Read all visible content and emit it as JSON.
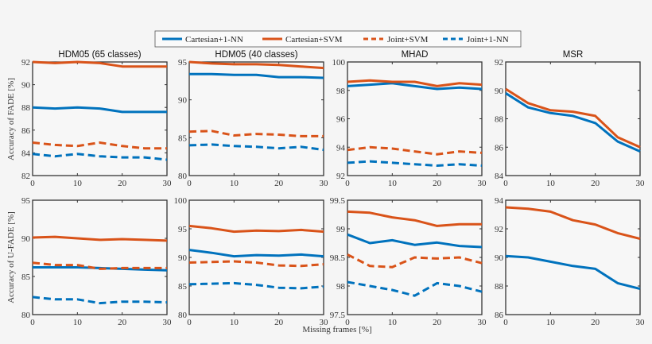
{
  "legend": {
    "position": "top-center",
    "entries": [
      "Cartesian+1-NN",
      "Cartesian+SVM",
      "Joint+SVM",
      "Joint+1-NN"
    ]
  },
  "colors": {
    "blue": "#0072BD",
    "orange": "#D95319"
  },
  "row_labels": [
    "Accuracy of FADE [%]",
    "Accuracy of U-FADE [%]"
  ],
  "xlabel": "Missing frames [%]",
  "chart_data": [
    {
      "type": "line",
      "title": "HDM05 (65 classes)",
      "ylabel": "Accuracy of FADE [%]",
      "x": [
        0,
        5,
        10,
        15,
        20,
        25,
        30
      ],
      "xlim": [
        0,
        30
      ],
      "xticks": [
        0,
        10,
        20,
        30
      ],
      "ylim": [
        82,
        92
      ],
      "yticks": [
        82,
        84,
        86,
        88,
        90,
        92
      ],
      "grid": false,
      "series": [
        {
          "name": "Cartesian+1-NN",
          "color": "#0072BD",
          "dash": false,
          "values": [
            88.0,
            87.9,
            88.0,
            87.9,
            87.6,
            87.6,
            87.6
          ]
        },
        {
          "name": "Cartesian+SVM",
          "color": "#D95319",
          "dash": false,
          "values": [
            92.0,
            91.9,
            92.0,
            91.9,
            91.6,
            91.6,
            91.6
          ]
        },
        {
          "name": "Joint+SVM",
          "color": "#D95319",
          "dash": true,
          "values": [
            84.9,
            84.7,
            84.6,
            84.9,
            84.6,
            84.4,
            84.4
          ]
        },
        {
          "name": "Joint+1-NN",
          "color": "#0072BD",
          "dash": true,
          "values": [
            83.9,
            83.7,
            83.9,
            83.7,
            83.6,
            83.6,
            83.4
          ]
        }
      ]
    },
    {
      "type": "line",
      "title": "HDM05 (40 classes)",
      "x": [
        0,
        5,
        10,
        15,
        20,
        25,
        30
      ],
      "xlim": [
        0,
        30
      ],
      "xticks": [
        0,
        10,
        20,
        30
      ],
      "ylim": [
        80,
        95
      ],
      "yticks": [
        80,
        85,
        90,
        95
      ],
      "grid": false,
      "series": [
        {
          "name": "Cartesian+1-NN",
          "color": "#0072BD",
          "dash": false,
          "values": [
            93.4,
            93.4,
            93.3,
            93.3,
            93.0,
            93.0,
            92.9
          ]
        },
        {
          "name": "Cartesian+SVM",
          "color": "#D95319",
          "dash": false,
          "values": [
            95.0,
            94.8,
            94.7,
            94.7,
            94.6,
            94.4,
            94.2
          ]
        },
        {
          "name": "Joint+SVM",
          "color": "#D95319",
          "dash": true,
          "values": [
            85.8,
            85.9,
            85.3,
            85.5,
            85.4,
            85.2,
            85.2
          ]
        },
        {
          "name": "Joint+1-NN",
          "color": "#0072BD",
          "dash": true,
          "values": [
            84.0,
            84.1,
            83.9,
            83.8,
            83.6,
            83.8,
            83.4
          ]
        }
      ]
    },
    {
      "type": "line",
      "title": "MHAD",
      "x": [
        0,
        5,
        10,
        15,
        20,
        25,
        30
      ],
      "xlim": [
        0,
        30
      ],
      "xticks": [
        0,
        10,
        20,
        30
      ],
      "ylim": [
        92,
        100
      ],
      "yticks": [
        92,
        94,
        96,
        98,
        100
      ],
      "grid": false,
      "series": [
        {
          "name": "Cartesian+1-NN",
          "color": "#0072BD",
          "dash": false,
          "values": [
            98.3,
            98.4,
            98.5,
            98.3,
            98.1,
            98.2,
            98.1
          ]
        },
        {
          "name": "Cartesian+SVM",
          "color": "#D95319",
          "dash": false,
          "values": [
            98.6,
            98.7,
            98.6,
            98.6,
            98.3,
            98.5,
            98.4
          ]
        },
        {
          "name": "Joint+SVM",
          "color": "#D95319",
          "dash": true,
          "values": [
            93.8,
            94.0,
            93.9,
            93.7,
            93.5,
            93.7,
            93.6
          ]
        },
        {
          "name": "Joint+1-NN",
          "color": "#0072BD",
          "dash": true,
          "values": [
            92.9,
            93.0,
            92.9,
            92.8,
            92.7,
            92.8,
            92.7
          ]
        }
      ]
    },
    {
      "type": "line",
      "title": "MSR",
      "x": [
        0,
        5,
        10,
        15,
        20,
        25,
        30
      ],
      "xlim": [
        0,
        30
      ],
      "xticks": [
        0,
        10,
        20,
        30
      ],
      "ylim": [
        84,
        92
      ],
      "yticks": [
        84,
        86,
        88,
        90,
        92
      ],
      "grid": false,
      "series": [
        {
          "name": "Cartesian+1-NN",
          "color": "#0072BD",
          "dash": false,
          "values": [
            89.8,
            88.8,
            88.4,
            88.2,
            87.7,
            86.4,
            85.7
          ]
        },
        {
          "name": "Cartesian+SVM",
          "color": "#D95319",
          "dash": false,
          "values": [
            90.1,
            89.1,
            88.6,
            88.5,
            88.2,
            86.7,
            86.0
          ]
        }
      ]
    },
    {
      "type": "line",
      "title": "",
      "ylabel": "Accuracy of U-FADE [%]",
      "x": [
        0,
        5,
        10,
        15,
        20,
        25,
        30
      ],
      "xlim": [
        0,
        30
      ],
      "xticks": [
        0,
        10,
        20,
        30
      ],
      "ylim": [
        80,
        95
      ],
      "yticks": [
        80,
        85,
        90,
        95
      ],
      "grid": false,
      "series": [
        {
          "name": "Cartesian+1-NN",
          "color": "#0072BD",
          "dash": false,
          "values": [
            86.2,
            86.2,
            86.2,
            86.1,
            86.0,
            85.9,
            85.8
          ]
        },
        {
          "name": "Cartesian+SVM",
          "color": "#D95319",
          "dash": false,
          "values": [
            90.1,
            90.2,
            90.0,
            89.8,
            89.9,
            89.8,
            89.7
          ]
        },
        {
          "name": "Joint+SVM",
          "color": "#D95319",
          "dash": true,
          "values": [
            86.8,
            86.5,
            86.5,
            86.0,
            86.1,
            86.1,
            86.1
          ]
        },
        {
          "name": "Joint+1-NN",
          "color": "#0072BD",
          "dash": true,
          "values": [
            82.3,
            82.0,
            82.0,
            81.5,
            81.7,
            81.7,
            81.6
          ]
        }
      ]
    },
    {
      "type": "line",
      "title": "",
      "x": [
        0,
        5,
        10,
        15,
        20,
        25,
        30
      ],
      "xlim": [
        0,
        30
      ],
      "xticks": [
        0,
        10,
        20,
        30
      ],
      "ylim": [
        80,
        100
      ],
      "yticks": [
        80,
        85,
        90,
        95,
        100
      ],
      "grid": false,
      "series": [
        {
          "name": "Cartesian+1-NN",
          "color": "#0072BD",
          "dash": false,
          "values": [
            91.3,
            90.8,
            90.2,
            90.4,
            90.3,
            90.5,
            90.2
          ]
        },
        {
          "name": "Cartesian+SVM",
          "color": "#D95319",
          "dash": false,
          "values": [
            95.5,
            95.1,
            94.5,
            94.7,
            94.6,
            94.8,
            94.5
          ]
        },
        {
          "name": "Joint+SVM",
          "color": "#D95319",
          "dash": true,
          "values": [
            89.1,
            89.2,
            89.3,
            89.1,
            88.6,
            88.5,
            88.8
          ]
        },
        {
          "name": "Joint+1-NN",
          "color": "#0072BD",
          "dash": true,
          "values": [
            85.3,
            85.4,
            85.5,
            85.2,
            84.7,
            84.6,
            84.9
          ]
        }
      ]
    },
    {
      "type": "line",
      "title": "",
      "x": [
        0,
        5,
        10,
        15,
        20,
        25,
        30
      ],
      "xlim": [
        0,
        30
      ],
      "xticks": [
        0,
        10,
        20,
        30
      ],
      "ylim": [
        97.5,
        99.5
      ],
      "yticks": [
        97.5,
        98,
        98.5,
        99,
        99.5
      ],
      "grid": false,
      "series": [
        {
          "name": "Cartesian+1-NN",
          "color": "#0072BD",
          "dash": false,
          "values": [
            98.9,
            98.75,
            98.8,
            98.72,
            98.76,
            98.7,
            98.68
          ]
        },
        {
          "name": "Cartesian+SVM",
          "color": "#D95319",
          "dash": false,
          "values": [
            99.3,
            99.28,
            99.2,
            99.15,
            99.05,
            99.08,
            99.08
          ]
        },
        {
          "name": "Joint+SVM",
          "color": "#D95319",
          "dash": true,
          "values": [
            98.55,
            98.35,
            98.33,
            98.5,
            98.48,
            98.5,
            98.4
          ]
        },
        {
          "name": "Joint+1-NN",
          "color": "#0072BD",
          "dash": true,
          "values": [
            98.07,
            98.0,
            97.93,
            97.83,
            98.05,
            98.0,
            97.9
          ]
        }
      ]
    },
    {
      "type": "line",
      "title": "",
      "x": [
        0,
        5,
        10,
        15,
        20,
        25,
        30
      ],
      "xlim": [
        0,
        30
      ],
      "xticks": [
        0,
        10,
        20,
        30
      ],
      "ylim": [
        86,
        94
      ],
      "yticks": [
        86,
        88,
        90,
        92,
        94
      ],
      "grid": false,
      "series": [
        {
          "name": "Cartesian+1-NN",
          "color": "#0072BD",
          "dash": false,
          "values": [
            90.1,
            90.0,
            89.7,
            89.4,
            89.2,
            88.2,
            87.8
          ]
        },
        {
          "name": "Cartesian+SVM",
          "color": "#D95319",
          "dash": false,
          "values": [
            93.5,
            93.4,
            93.2,
            92.6,
            92.3,
            91.7,
            91.3
          ]
        }
      ]
    }
  ]
}
